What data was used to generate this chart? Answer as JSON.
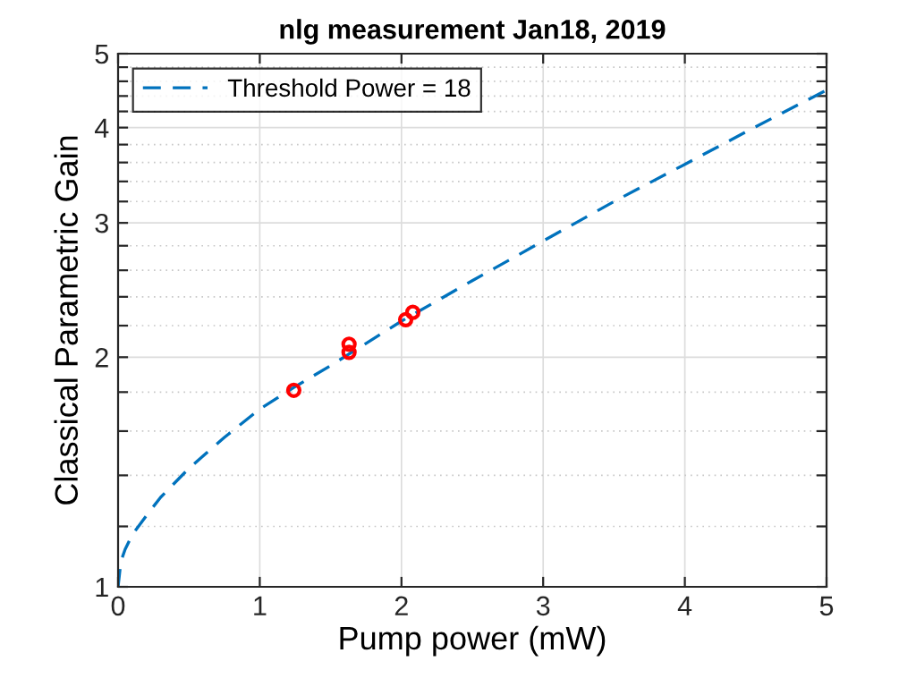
{
  "chart_data": {
    "type": "line",
    "title": "nlg measurement Jan18, 2019",
    "xlabel": "Pump power (mW)",
    "ylabel": "Classical Parametric Gain",
    "series": [
      {
        "name": "Threshold Power = 18",
        "color": "#0072bd",
        "line_style": "dashed",
        "marker": "none",
        "x": [
          0,
          0.02,
          0.05,
          0.1,
          0.2,
          0.3,
          0.5,
          0.75,
          1,
          1.25,
          1.5,
          2,
          2.5,
          3,
          3.5,
          4,
          4.5,
          5
        ],
        "values": [
          1.0,
          1.08,
          1.12,
          1.17,
          1.24,
          1.31,
          1.43,
          1.57,
          1.71,
          1.83,
          1.95,
          2.23,
          2.52,
          2.84,
          3.2,
          3.58,
          4.01,
          4.48
        ]
      },
      {
        "type": "scatter",
        "color": "#ff0000",
        "marker": "circle",
        "x": [
          1.24,
          1.63,
          1.63,
          2.03,
          2.08
        ],
        "values": [
          1.81,
          2.03,
          2.08,
          2.24,
          2.29
        ]
      }
    ],
    "log": "y",
    "xlim": [
      0,
      5
    ],
    "xticks": [
      0,
      1,
      2,
      3,
      4,
      5
    ],
    "ylim": [
      1,
      5
    ],
    "yticks": [
      1,
      {
        "value": 1.2,
        "label": null
      },
      {
        "value": 1.4,
        "label": null
      },
      {
        "value": 1.6,
        "label": null
      },
      {
        "value": 1.8,
        "label": null
      },
      2,
      {
        "value": 2.2,
        "label": null
      },
      {
        "value": 2.4,
        "label": null
      },
      {
        "value": 2.6,
        "label": null
      },
      {
        "value": 2.8,
        "label": null
      },
      3,
      {
        "value": 3.2,
        "label": null
      },
      {
        "value": 3.4,
        "label": null
      },
      {
        "value": 3.6,
        "label": null
      },
      {
        "value": 3.8,
        "label": null
      },
      4,
      {
        "value": 4.2,
        "label": null
      },
      {
        "value": 4.4,
        "label": null
      },
      {
        "value": 4.6,
        "label": null
      },
      {
        "value": 4.8,
        "label": null
      },
      5
    ],
    "grid": true,
    "legend": "top left"
  }
}
